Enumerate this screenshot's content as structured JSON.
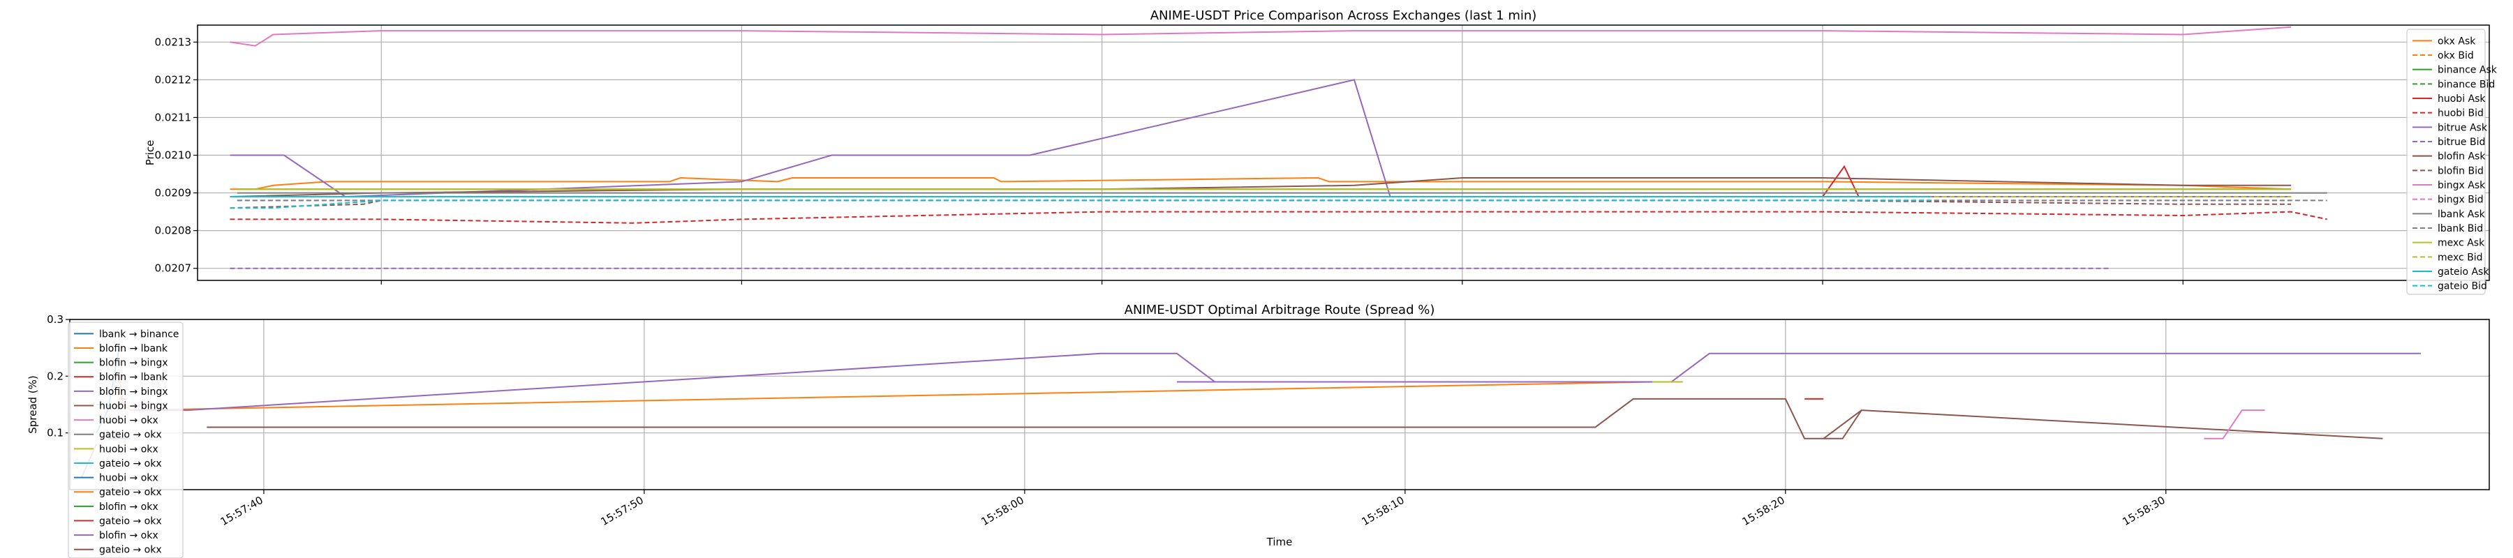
{
  "chart_data": [
    {
      "type": "line",
      "title": "ANIME-USDT Price Comparison Across Exchanges (last 1 min)",
      "xlabel": "",
      "ylabel": "Price",
      "ylim": [
        0.020668,
        0.021345
      ],
      "xlim": [
        "15:57:34.9",
        "15:58:38.5"
      ],
      "x_ticks": [
        "15:57:40",
        "15:57:50",
        "15:58:00",
        "15:58:10",
        "15:58:20",
        "15:58:30"
      ],
      "x_ticklabels_shown": false,
      "y_ticks": [
        "0.0207",
        "0.0208",
        "0.0209",
        "0.0210",
        "0.0211",
        "0.0212",
        "0.0213"
      ],
      "grid": true,
      "legend_position": "right",
      "series": [
        {
          "name": "okx Ask",
          "color": "#ff7f0e",
          "style": "solid",
          "x": [
            "15:57:35.8",
            "15:57:36.5",
            "15:57:37.0",
            "15:57:38.5",
            "15:57:48.0",
            "15:57:48.3",
            "15:57:51.0",
            "15:57:51.4",
            "15:57:57.0",
            "15:57:57.2",
            "15:58:06.0",
            "15:58:06.3",
            "15:58:10.0",
            "15:58:20.0",
            "15:58:30.0",
            "15:58:33.0"
          ],
          "y": [
            0.02091,
            0.02091,
            0.02092,
            0.02093,
            0.02093,
            0.02094,
            0.02093,
            0.02094,
            0.02094,
            0.02093,
            0.02094,
            0.02093,
            0.02093,
            0.02093,
            0.02092,
            0.02091
          ]
        },
        {
          "name": "okx Bid",
          "color": "#ff7f0e",
          "style": "dashed",
          "x": [
            "15:57:36.5",
            "15:57:40.0",
            "15:58:00.0",
            "15:58:10.0",
            "15:58:20.0",
            "15:58:33.0"
          ],
          "y": [
            0.02089,
            0.02089,
            0.02089,
            0.02089,
            0.02089,
            0.02089
          ]
        },
        {
          "name": "binance Ask",
          "color": "#2ca02c",
          "style": "solid",
          "x": [
            "15:57:36.0",
            "15:57:40.0",
            "15:57:50.0",
            "15:58:00.0",
            "15:58:10.0",
            "15:58:20.0",
            "15:58:29.0",
            "15:58:30.0",
            "15:58:33.0"
          ],
          "y": [
            0.02091,
            0.02091,
            0.02091,
            0.02091,
            0.02091,
            0.02091,
            0.02091,
            0.02091,
            0.02091
          ]
        },
        {
          "name": "binance Bid",
          "color": "#2ca02c",
          "style": "dashed",
          "x": [
            "15:57:36.0",
            "15:57:40.0",
            "15:58:00.0",
            "15:58:20.0",
            "15:58:33.0"
          ],
          "y": [
            0.02089,
            0.02089,
            0.02089,
            0.02089,
            0.02089
          ]
        },
        {
          "name": "huobi Ask",
          "color": "#d62728",
          "style": "solid",
          "x": [
            "15:57:35.8",
            "15:57:40.0",
            "15:57:50.0",
            "15:58:00.0",
            "15:58:10.0",
            "15:58:20.0",
            "15:58:20.6",
            "15:58:21.0",
            "15:58:30.0",
            "15:58:33.0"
          ],
          "y": [
            0.02089,
            0.02089,
            0.02089,
            0.02089,
            0.02089,
            0.02089,
            0.02097,
            0.02089,
            0.02089,
            0.02089
          ]
        },
        {
          "name": "huobi Bid",
          "color": "#d62728",
          "style": "dashed",
          "x": [
            "15:57:35.8",
            "15:57:40.0",
            "15:57:47.0",
            "15:57:50.0",
            "15:58:00.0",
            "15:58:10.0",
            "15:58:20.0",
            "15:58:30.0",
            "15:58:33.0",
            "15:58:34.0"
          ],
          "y": [
            0.02083,
            0.02083,
            0.02082,
            0.02083,
            0.02085,
            0.02085,
            0.02085,
            0.02084,
            0.02085,
            0.02083
          ]
        },
        {
          "name": "bitrue Ask",
          "color": "#9467bd",
          "style": "solid",
          "x": [
            "15:57:35.8",
            "15:57:37.3",
            "15:57:39.0",
            "15:57:50.0",
            "15:57:52.5",
            "15:57:58.0",
            "15:58:07.0",
            "15:58:08.0",
            "15:58:10.0",
            "15:58:20.0",
            "15:58:30.0",
            "15:58:33.0"
          ],
          "y": [
            0.021,
            0.021,
            0.02089,
            0.02093,
            0.021,
            0.021,
            0.0212,
            0.02089,
            0.02089,
            0.02089,
            0.02089,
            0.02089
          ]
        },
        {
          "name": "bitrue Bid",
          "color": "#9467bd",
          "style": "dashed",
          "x": [
            "15:57:35.8",
            "15:57:40.0",
            "15:58:00.0",
            "15:58:20.0",
            "15:58:28.0"
          ],
          "y": [
            0.0207,
            0.0207,
            0.0207,
            0.0207,
            0.0207
          ]
        },
        {
          "name": "blofin Ask",
          "color": "#8c564b",
          "style": "solid",
          "x": [
            "15:57:35.8",
            "15:57:40.0",
            "15:57:50.0",
            "15:58:00.0",
            "15:58:07.0",
            "15:58:10.0",
            "15:58:20.0",
            "15:58:30.0",
            "15:58:33.0"
          ],
          "y": [
            0.02089,
            0.0209,
            0.02091,
            0.02091,
            0.02092,
            0.02094,
            0.02094,
            0.02092,
            0.02092
          ]
        },
        {
          "name": "blofin Bid",
          "color": "#8c564b",
          "style": "dashed",
          "x": [
            "15:57:35.8",
            "15:57:39.5",
            "15:57:40.0",
            "15:57:50.0",
            "15:58:00.0",
            "15:58:10.0",
            "15:58:20.0",
            "15:58:30.0",
            "15:58:33.0"
          ],
          "y": [
            0.02086,
            0.02087,
            0.02088,
            0.02088,
            0.02088,
            0.02088,
            0.02088,
            0.02087,
            0.02087
          ]
        },
        {
          "name": "bingx Ask",
          "color": "#e377c2",
          "style": "solid",
          "x": [
            "15:57:35.8",
            "15:57:36.5",
            "15:57:37.0",
            "15:57:40.0",
            "15:57:50.0",
            "15:58:00.0",
            "15:58:07.0",
            "15:58:10.0",
            "15:58:20.0",
            "15:58:30.0",
            "15:58:33.0"
          ],
          "y": [
            0.0213,
            0.02129,
            0.02132,
            0.02133,
            0.02133,
            0.02132,
            0.02133,
            0.02133,
            0.02133,
            0.02132,
            0.02134
          ]
        },
        {
          "name": "bingx Bid",
          "color": "#e377c2",
          "style": "dashed",
          "x": [
            "15:57:36.0",
            "15:57:40.0",
            "15:58:00.0",
            "15:58:20.0",
            "15:58:33.0"
          ],
          "y": [
            0.02088,
            0.02088,
            0.02088,
            0.02088,
            0.02088
          ]
        },
        {
          "name": "lbank Ask",
          "color": "#7f7f7f",
          "style": "solid",
          "x": [
            "15:57:36.0",
            "15:57:40.0",
            "15:58:00.0",
            "15:58:20.0",
            "15:58:34.0"
          ],
          "y": [
            0.0209,
            0.0209,
            0.0209,
            0.0209,
            0.0209
          ]
        },
        {
          "name": "lbank Bid",
          "color": "#7f7f7f",
          "style": "dashed",
          "x": [
            "15:57:36.0",
            "15:57:40.0",
            "15:58:00.0",
            "15:58:20.0",
            "15:58:34.0"
          ],
          "y": [
            0.02088,
            0.02088,
            0.02088,
            0.02088,
            0.02088
          ]
        },
        {
          "name": "mexc Ask",
          "color": "#bcbd22",
          "style": "solid",
          "x": [
            "15:57:36.0",
            "15:57:40.0",
            "15:58:00.0",
            "15:58:20.0",
            "15:58:33.0"
          ],
          "y": [
            0.02091,
            0.02091,
            0.02091,
            0.02091,
            0.02091
          ]
        },
        {
          "name": "mexc Bid",
          "color": "#bcbd22",
          "style": "dashed",
          "x": [
            "15:57:36.0",
            "15:57:40.0",
            "15:58:00.0",
            "15:58:20.0",
            "15:58:33.0"
          ],
          "y": [
            0.02089,
            0.02089,
            0.02089,
            0.02089,
            0.02089
          ]
        },
        {
          "name": "gateio Ask",
          "color": "#17becf",
          "style": "solid",
          "x": [
            "15:57:35.8",
            "15:57:40.0",
            "15:58:00.0",
            "15:58:20.0",
            "15:58:23.0"
          ],
          "y": [
            0.02089,
            0.02089,
            0.02089,
            0.02089,
            0.02089
          ]
        },
        {
          "name": "gateio Bid",
          "color": "#17becf",
          "style": "dashed",
          "x": [
            "15:57:35.8",
            "15:57:37.0",
            "15:57:40.0",
            "15:58:00.0",
            "15:58:20.0",
            "15:58:23.0"
          ],
          "y": [
            0.02086,
            0.02086,
            0.02088,
            0.02088,
            0.02088,
            0.02088
          ]
        }
      ]
    },
    {
      "type": "line",
      "title": "ANIME-USDT Optimal Arbitrage Route (Spread %)",
      "xlabel": "Time",
      "ylabel": "Spread (%)",
      "ylim": [
        0.0,
        0.3
      ],
      "xlim": [
        "15:57:34.9",
        "15:58:38.5"
      ],
      "x_ticks": [
        "15:57:40",
        "15:57:50",
        "15:58:00",
        "15:58:10",
        "15:58:20",
        "15:58:30"
      ],
      "x_ticklabels": [
        "15:57:40",
        "15:57:50",
        "15:58:00",
        "15:58:10",
        "15:58:20",
        "15:58:30"
      ],
      "y_ticks": [
        "0.1",
        "0.2",
        "0.3"
      ],
      "grid": true,
      "legend_position": "top-left",
      "series": [
        {
          "name": "lbank → binance",
          "color": "#1f77b4",
          "x": [
            "15:57:35.6",
            "15:57:35.9",
            "15:57:36.2"
          ],
          "y": [
            0.1,
            0.14,
            0.25
          ]
        },
        {
          "name": "blofin → lbank",
          "color": "#ff7f0e",
          "x": [
            "15:57:36.2",
            "15:57:36.3",
            "15:57:36.5",
            "15:58:16.5",
            "15:58:17.3"
          ],
          "y": [
            0.2,
            0.15,
            0.14,
            0.19,
            0.19
          ]
        },
        {
          "name": "blofin → bingx",
          "color": "#2ca02c",
          "x": [
            "15:57:35.7",
            "15:57:36.0"
          ],
          "y": [
            0.12,
            0.12
          ]
        },
        {
          "name": "blofin → lbank",
          "color": "#d62728",
          "x": [
            "15:57:36.2",
            "15:57:36.4"
          ],
          "y": [
            0.16,
            0.16
          ]
        },
        {
          "name": "blofin → bingx",
          "color": "#9467bd",
          "x": [
            "15:57:36.6",
            "15:57:38.0",
            "15:58:02.0",
            "15:58:04.0",
            "15:58:05.0",
            "15:58:17.0",
            "15:58:18.0",
            "15:58:36.7"
          ],
          "y": [
            0.14,
            0.14,
            0.24,
            0.24,
            0.19,
            0.19,
            0.24,
            0.24
          ]
        },
        {
          "name": "huobi → bingx",
          "color": "#8c564b",
          "x": [
            "15:57:38.5",
            "15:58:15.0",
            "15:58:16.0",
            "15:58:20.0",
            "15:58:20.5",
            "15:58:21.5",
            "15:58:22.0",
            "15:58:35.7"
          ],
          "y": [
            0.11,
            0.11,
            0.16,
            0.16,
            0.09,
            0.09,
            0.14,
            0.09
          ]
        },
        {
          "name": "huobi → okx",
          "color": "#e377c2",
          "x": [
            "15:58:31.0",
            "15:58:31.5",
            "15:58:32.0",
            "15:58:32.6"
          ],
          "y": [
            0.09,
            0.09,
            0.14,
            0.14
          ]
        },
        {
          "name": "gateio → okx",
          "color": "#7f7f7f",
          "x": [
            "15:57:35.2",
            "15:57:35.4",
            "15:57:35.6"
          ],
          "y": [
            0.02,
            0.05,
            0.08
          ]
        },
        {
          "name": "huobi → okx",
          "color": "#bcbd22",
          "x": [
            "15:58:16.5",
            "15:58:17.3"
          ],
          "y": [
            0.19,
            0.19
          ]
        },
        {
          "name": "gateio → okx",
          "color": "#17becf",
          "x": [
            "15:57:35.6",
            "15:57:35.9"
          ],
          "y": [
            0.15,
            0.15
          ]
        },
        {
          "name": "huobi → okx",
          "color": "#1f77b4",
          "x": [
            "15:57:35.9",
            "15:57:36.5"
          ],
          "y": [
            0.09,
            0.09
          ]
        },
        {
          "name": "gateio → okx",
          "color": "#ff7f0e",
          "x": [
            "15:57:36.0",
            "15:57:36.2"
          ],
          "y": [
            0.15,
            0.15
          ]
        },
        {
          "name": "blofin → okx",
          "color": "#2ca02c",
          "x": [
            "15:57:35.8",
            "15:57:36.0"
          ],
          "y": [
            0.12,
            0.12
          ]
        },
        {
          "name": "gateio → okx",
          "color": "#d62728",
          "x": [
            "15:58:20.5",
            "15:58:21.0"
          ],
          "y": [
            0.16,
            0.16
          ]
        },
        {
          "name": "blofin → okx",
          "color": "#9467bd",
          "x": [
            "15:58:04.0",
            "15:58:05.0"
          ],
          "y": [
            0.19,
            0.19
          ]
        },
        {
          "name": "gateio → okx",
          "color": "#8c564b",
          "x": [
            "15:58:21.0",
            "15:58:22.0"
          ],
          "y": [
            0.09,
            0.14
          ]
        }
      ]
    }
  ]
}
